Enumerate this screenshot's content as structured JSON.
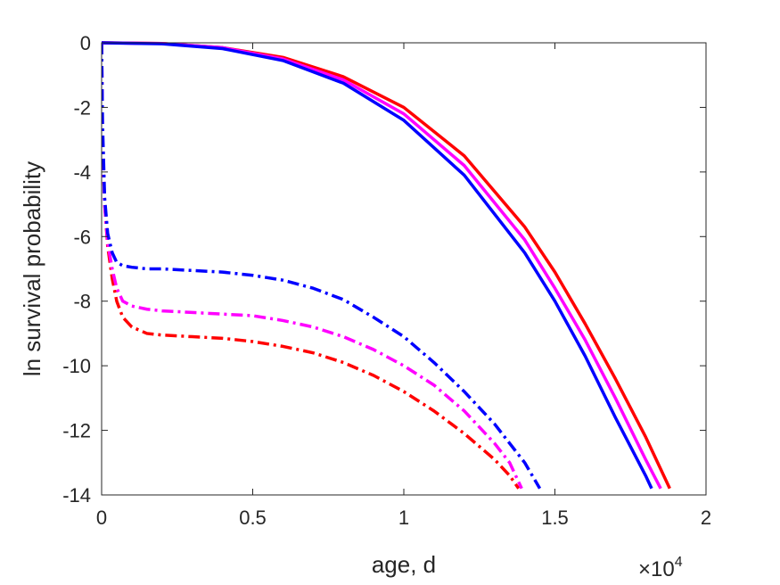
{
  "chart_data": {
    "type": "line",
    "xlabel": "age, d",
    "ylabel": "ln survival probability",
    "x_exponent_label": {
      "times": "×10",
      "power": "4"
    },
    "xlim": [
      0,
      20000
    ],
    "ylim": [
      -14,
      0
    ],
    "xticks": [
      0,
      5000,
      10000,
      15000,
      20000
    ],
    "xtick_labels": [
      "0",
      "0.5",
      "1",
      "1.5",
      "2"
    ],
    "yticks": [
      0,
      -2,
      -4,
      -6,
      -8,
      -10,
      -12,
      -14
    ],
    "ytick_labels": [
      "0",
      "-2",
      "-4",
      "-6",
      "-8",
      "-10",
      "-12",
      "-14"
    ],
    "grid": false,
    "box": true,
    "series": [
      {
        "color": "#ff0000",
        "style": "solid",
        "x": [
          0,
          2000,
          4000,
          6000,
          8000,
          10000,
          12000,
          14000,
          15000,
          16000,
          17000,
          18000,
          18800
        ],
        "y": [
          0,
          -0.02,
          -0.15,
          -0.45,
          -1.05,
          -2.0,
          -3.5,
          -5.7,
          -7.1,
          -8.7,
          -10.4,
          -12.2,
          -13.8
        ]
      },
      {
        "color": "#ff00ff",
        "style": "solid",
        "x": [
          0,
          2000,
          4000,
          6000,
          8000,
          10000,
          12000,
          14000,
          15000,
          16000,
          17000,
          18000,
          18500
        ],
        "y": [
          0,
          -0.02,
          -0.15,
          -0.5,
          -1.15,
          -2.2,
          -3.8,
          -6.1,
          -7.6,
          -9.2,
          -11.0,
          -12.9,
          -13.8
        ]
      },
      {
        "color": "#0000ff",
        "style": "solid",
        "x": [
          0,
          2000,
          4000,
          6000,
          8000,
          10000,
          12000,
          14000,
          15000,
          16000,
          17000,
          18000,
          18200
        ],
        "y": [
          0,
          -0.03,
          -0.18,
          -0.55,
          -1.25,
          -2.4,
          -4.1,
          -6.5,
          -8.0,
          -9.7,
          -11.6,
          -13.4,
          -13.8
        ]
      },
      {
        "color": "#ff0000",
        "style": "dashdot",
        "x": [
          0,
          30,
          100,
          200,
          350,
          500,
          700,
          1000,
          1500,
          2000,
          3000,
          4000,
          5000,
          6000,
          7000,
          8000,
          9000,
          10000,
          11000,
          12000,
          13000,
          13500,
          13800
        ],
        "y": [
          0,
          -3.0,
          -5.0,
          -6.3,
          -7.3,
          -8.0,
          -8.5,
          -8.8,
          -9.0,
          -9.05,
          -9.1,
          -9.15,
          -9.25,
          -9.4,
          -9.6,
          -9.9,
          -10.3,
          -10.8,
          -11.4,
          -12.1,
          -12.9,
          -13.4,
          -13.8
        ]
      },
      {
        "color": "#ff00ff",
        "style": "dashdot",
        "x": [
          0,
          30,
          100,
          200,
          350,
          500,
          700,
          1000,
          1500,
          2000,
          3000,
          4000,
          5000,
          6000,
          7000,
          8000,
          9000,
          10000,
          11000,
          12000,
          13000,
          13500,
          13900
        ],
        "y": [
          0,
          -3.0,
          -5.0,
          -6.2,
          -7.0,
          -7.6,
          -8.0,
          -8.15,
          -8.25,
          -8.3,
          -8.35,
          -8.4,
          -8.45,
          -8.6,
          -8.8,
          -9.1,
          -9.5,
          -10.0,
          -10.6,
          -11.4,
          -12.4,
          -13.0,
          -13.8
        ]
      },
      {
        "color": "#0000ff",
        "style": "dashdot",
        "x": [
          0,
          30,
          100,
          200,
          350,
          500,
          700,
          1000,
          1500,
          2000,
          3000,
          4000,
          5000,
          6000,
          7000,
          8000,
          9000,
          10000,
          11000,
          12000,
          13000,
          13500,
          14000,
          14500
        ],
        "y": [
          0,
          -2.5,
          -4.8,
          -5.9,
          -6.5,
          -6.8,
          -6.9,
          -6.95,
          -7.0,
          -7.0,
          -7.05,
          -7.1,
          -7.2,
          -7.35,
          -7.6,
          -7.95,
          -8.5,
          -9.1,
          -9.9,
          -10.8,
          -11.8,
          -12.4,
          -13.0,
          -13.8
        ]
      }
    ]
  }
}
